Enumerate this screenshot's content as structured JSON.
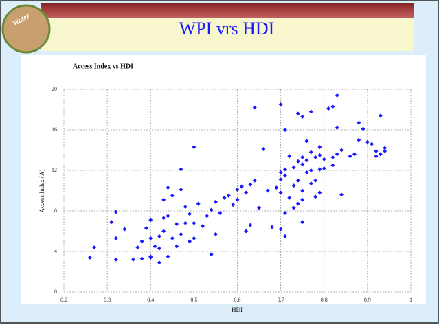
{
  "slide": {
    "title": "WPI vrs HDI",
    "logo_text": "Water"
  },
  "chart_data": {
    "type": "scatter",
    "title": "Access Index vs HDI",
    "x_label": "HDI",
    "y_label": "Access Index (A)",
    "xlim": [
      0.2,
      1
    ],
    "xticks": [
      0.2,
      0.3,
      0.4,
      0.5,
      0.6,
      0.7,
      0.8,
      0.9,
      1
    ],
    "ylim": [
      0,
      20
    ],
    "yticks": [
      0,
      4,
      8,
      12,
      16,
      20
    ],
    "grid": true,
    "series": [
      {
        "color": "#1a1aff",
        "x": [
          0.26,
          0.27,
          0.31,
          0.32,
          0.32,
          0.32,
          0.34,
          0.36,
          0.37,
          0.38,
          0.38,
          0.39,
          0.4,
          0.4,
          0.4,
          0.4,
          0.41,
          0.42,
          0.42,
          0.42,
          0.43,
          0.43,
          0.43,
          0.44,
          0.44,
          0.44,
          0.45,
          0.45,
          0.46,
          0.46,
          0.47,
          0.47,
          0.47,
          0.48,
          0.48,
          0.49,
          0.49,
          0.5,
          0.5,
          0.5,
          0.51,
          0.52,
          0.53,
          0.54,
          0.54,
          0.55,
          0.55,
          0.56,
          0.57,
          0.58,
          0.59,
          0.6,
          0.6,
          0.61,
          0.62,
          0.62,
          0.63,
          0.63,
          0.64,
          0.64,
          0.65,
          0.66,
          0.67,
          0.68,
          0.69,
          0.7,
          0.7,
          0.7,
          0.7,
          0.7,
          0.71,
          0.71,
          0.71,
          0.71,
          0.71,
          0.72,
          0.72,
          0.73,
          0.73,
          0.73,
          0.74,
          0.74,
          0.74,
          0.74,
          0.75,
          0.75,
          0.75,
          0.75,
          0.75,
          0.75,
          0.76,
          0.76,
          0.76,
          0.77,
          0.77,
          0.77,
          0.77,
          0.78,
          0.78,
          0.78,
          0.79,
          0.79,
          0.79,
          0.79,
          0.8,
          0.8,
          0.81,
          0.82,
          0.82,
          0.82,
          0.83,
          0.83,
          0.83,
          0.84,
          0.84,
          0.86,
          0.87,
          0.88,
          0.88,
          0.89,
          0.9,
          0.91,
          0.92,
          0.92,
          0.93,
          0.93,
          0.94,
          0.94
        ],
        "values": [
          3.4,
          4.4,
          6.9,
          5.3,
          3.2,
          7.9,
          6.2,
          3.2,
          4.4,
          5.0,
          3.3,
          6.3,
          7.1,
          3.5,
          3.4,
          5.3,
          4.5,
          2.9,
          4.3,
          5.5,
          6.0,
          7.3,
          9.1,
          10.3,
          3.5,
          7.5,
          5.3,
          9.5,
          6.7,
          4.5,
          5.7,
          12.1,
          10.1,
          8.4,
          6.8,
          5.0,
          7.7,
          14.3,
          6.8,
          5.3,
          8.7,
          6.5,
          7.5,
          3.7,
          8.1,
          8.9,
          5.7,
          7.8,
          9.3,
          9.5,
          8.6,
          9.1,
          10.1,
          10.4,
          6.0,
          9.8,
          10.6,
          6.6,
          18.2,
          11.0,
          8.3,
          14.1,
          10.0,
          6.4,
          10.3,
          18.5,
          11.8,
          9.8,
          11.1,
          6.2,
          7.8,
          16.0,
          12.1,
          11.5,
          5.5,
          13.4,
          9.3,
          12.3,
          8.3,
          10.5,
          17.6,
          12.9,
          11.0,
          8.7,
          6.9,
          17.3,
          13.3,
          12.6,
          10.0,
          9.1,
          14.9,
          13.0,
          11.8,
          17.8,
          13.8,
          12.0,
          10.7,
          13.3,
          11.0,
          9.4,
          14.3,
          13.5,
          12.1,
          9.8,
          13.1,
          12.2,
          18.1,
          18.3,
          13.3,
          12.5,
          19.4,
          16.2,
          13.6,
          14.0,
          9.6,
          13.4,
          13.6,
          16.7,
          15.0,
          16.1,
          14.8,
          14.6,
          13.4,
          13.9,
          17.4,
          13.6,
          13.9,
          14.2
        ]
      }
    ]
  }
}
